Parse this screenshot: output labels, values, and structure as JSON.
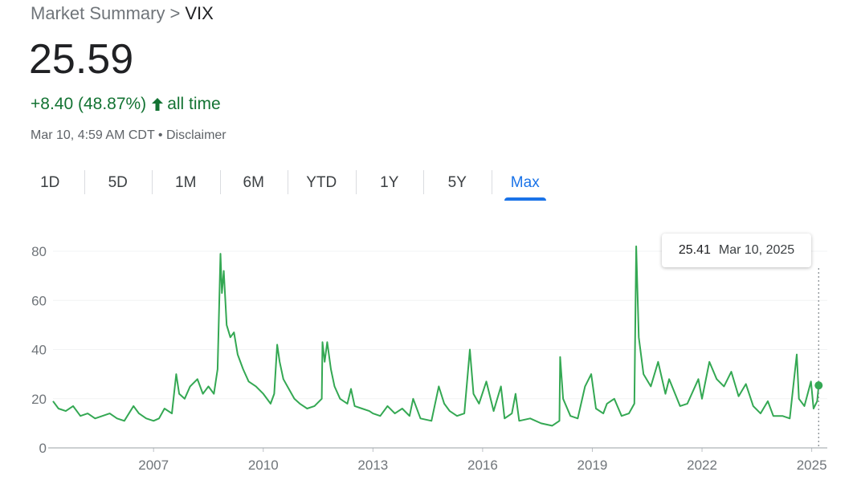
{
  "breadcrumb": {
    "parent": "Market Summary",
    "separator": ">",
    "current": "VIX"
  },
  "quote": {
    "price": "25.59",
    "change": "+8.40 (48.87%)",
    "period": "all time",
    "timestamp": "Mar 10, 4:59 AM CDT",
    "bullet": "•",
    "disclaimer": "Disclaimer"
  },
  "tabs": [
    {
      "label": "1D"
    },
    {
      "label": "5D"
    },
    {
      "label": "1M"
    },
    {
      "label": "6M"
    },
    {
      "label": "YTD"
    },
    {
      "label": "1Y"
    },
    {
      "label": "5Y"
    },
    {
      "label": "Max",
      "active": true
    }
  ],
  "tooltip": {
    "value": "25.41",
    "date": "Mar 10, 2025"
  },
  "colors": {
    "line": "#34a853",
    "positive": "#137333",
    "accent": "#1a73e8"
  },
  "chart_data": {
    "type": "line",
    "title": "",
    "xlabel": "",
    "ylabel": "",
    "x_ticks": [
      "2007",
      "2010",
      "2013",
      "2016",
      "2019",
      "2022",
      "2025"
    ],
    "y_ticks": [
      0,
      20,
      40,
      60,
      80
    ],
    "ylim": [
      0,
      80
    ],
    "xlim": [
      2004.25,
      2025.25
    ],
    "grid": true,
    "series": [
      {
        "points": [
          [
            2004.25,
            19
          ],
          [
            2004.4,
            16
          ],
          [
            2004.6,
            15
          ],
          [
            2004.8,
            17
          ],
          [
            2005.0,
            13
          ],
          [
            2005.2,
            14
          ],
          [
            2005.4,
            12
          ],
          [
            2005.6,
            13
          ],
          [
            2005.8,
            14
          ],
          [
            2006.0,
            12
          ],
          [
            2006.2,
            11
          ],
          [
            2006.45,
            17
          ],
          [
            2006.6,
            14
          ],
          [
            2006.8,
            12
          ],
          [
            2007.0,
            11
          ],
          [
            2007.15,
            12
          ],
          [
            2007.3,
            16
          ],
          [
            2007.5,
            14
          ],
          [
            2007.62,
            30
          ],
          [
            2007.7,
            22
          ],
          [
            2007.85,
            20
          ],
          [
            2008.0,
            25
          ],
          [
            2008.2,
            28
          ],
          [
            2008.35,
            22
          ],
          [
            2008.5,
            25
          ],
          [
            2008.65,
            22
          ],
          [
            2008.75,
            32
          ],
          [
            2008.83,
            79
          ],
          [
            2008.87,
            63
          ],
          [
            2008.92,
            72
          ],
          [
            2009.0,
            50
          ],
          [
            2009.1,
            45
          ],
          [
            2009.2,
            47
          ],
          [
            2009.3,
            38
          ],
          [
            2009.45,
            32
          ],
          [
            2009.6,
            27
          ],
          [
            2009.8,
            25
          ],
          [
            2010.0,
            22
          ],
          [
            2010.2,
            18
          ],
          [
            2010.3,
            22
          ],
          [
            2010.38,
            42
          ],
          [
            2010.45,
            35
          ],
          [
            2010.55,
            28
          ],
          [
            2010.7,
            24
          ],
          [
            2010.85,
            20
          ],
          [
            2011.0,
            18
          ],
          [
            2011.2,
            16
          ],
          [
            2011.4,
            17
          ],
          [
            2011.6,
            20
          ],
          [
            2011.62,
            43
          ],
          [
            2011.68,
            35
          ],
          [
            2011.75,
            43
          ],
          [
            2011.85,
            32
          ],
          [
            2011.95,
            25
          ],
          [
            2012.1,
            20
          ],
          [
            2012.3,
            18
          ],
          [
            2012.4,
            24
          ],
          [
            2012.5,
            17
          ],
          [
            2012.7,
            16
          ],
          [
            2012.9,
            15
          ],
          [
            2013.0,
            14
          ],
          [
            2013.2,
            13
          ],
          [
            2013.4,
            17
          ],
          [
            2013.6,
            14
          ],
          [
            2013.8,
            16
          ],
          [
            2014.0,
            13
          ],
          [
            2014.1,
            20
          ],
          [
            2014.3,
            12
          ],
          [
            2014.6,
            11
          ],
          [
            2014.8,
            25
          ],
          [
            2014.95,
            18
          ],
          [
            2015.1,
            15
          ],
          [
            2015.3,
            13
          ],
          [
            2015.5,
            14
          ],
          [
            2015.65,
            40
          ],
          [
            2015.75,
            22
          ],
          [
            2015.9,
            18
          ],
          [
            2016.1,
            27
          ],
          [
            2016.3,
            15
          ],
          [
            2016.5,
            25
          ],
          [
            2016.6,
            12
          ],
          [
            2016.8,
            14
          ],
          [
            2016.9,
            22
          ],
          [
            2017.0,
            11
          ],
          [
            2017.3,
            12
          ],
          [
            2017.6,
            10
          ],
          [
            2017.9,
            9
          ],
          [
            2018.1,
            11
          ],
          [
            2018.12,
            37
          ],
          [
            2018.2,
            20
          ],
          [
            2018.4,
            13
          ],
          [
            2018.6,
            12
          ],
          [
            2018.8,
            25
          ],
          [
            2018.97,
            30
          ],
          [
            2019.1,
            16
          ],
          [
            2019.3,
            14
          ],
          [
            2019.4,
            18
          ],
          [
            2019.6,
            20
          ],
          [
            2019.8,
            13
          ],
          [
            2020.0,
            14
          ],
          [
            2020.15,
            18
          ],
          [
            2020.2,
            82
          ],
          [
            2020.27,
            45
          ],
          [
            2020.4,
            30
          ],
          [
            2020.6,
            25
          ],
          [
            2020.8,
            35
          ],
          [
            2021.0,
            22
          ],
          [
            2021.1,
            28
          ],
          [
            2021.4,
            17
          ],
          [
            2021.6,
            18
          ],
          [
            2021.9,
            28
          ],
          [
            2022.0,
            20
          ],
          [
            2022.2,
            35
          ],
          [
            2022.4,
            28
          ],
          [
            2022.6,
            25
          ],
          [
            2022.8,
            31
          ],
          [
            2023.0,
            21
          ],
          [
            2023.2,
            26
          ],
          [
            2023.4,
            17
          ],
          [
            2023.6,
            14
          ],
          [
            2023.8,
            19
          ],
          [
            2023.95,
            13
          ],
          [
            2024.2,
            13
          ],
          [
            2024.4,
            12
          ],
          [
            2024.59,
            38
          ],
          [
            2024.65,
            20
          ],
          [
            2024.8,
            17
          ],
          [
            2024.98,
            27
          ],
          [
            2025.05,
            16
          ],
          [
            2025.15,
            19
          ],
          [
            2025.19,
            25.41
          ]
        ]
      }
    ],
    "last_point": {
      "x": "Mar 10, 2025",
      "y": 25.41
    }
  }
}
